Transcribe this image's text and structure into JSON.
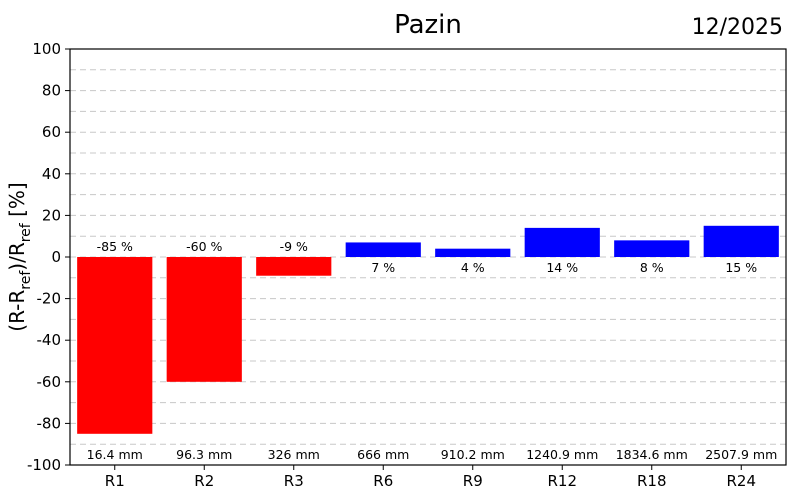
{
  "chart_data": {
    "type": "bar",
    "title": "Pazin",
    "date": "12/2025",
    "ylabel": {
      "base": "(R-R",
      "sub1": "ref",
      "mid": ")/R",
      "sub2": "ref",
      "end": " [%]"
    },
    "ylim": [
      -100,
      100
    ],
    "yticks": [
      -100,
      -80,
      -60,
      -40,
      -20,
      0,
      20,
      40,
      60,
      80,
      100
    ],
    "grid": "horizontal dashed",
    "categories": [
      "R1",
      "R2",
      "R3",
      "R6",
      "R9",
      "R12",
      "R18",
      "R24"
    ],
    "values": [
      -85,
      -60,
      -9,
      7,
      4,
      14,
      8,
      15
    ],
    "value_labels": [
      "-85 %",
      "-60 %",
      "-9 %",
      "7 %",
      "4 %",
      "14 %",
      "8 %",
      "15 %"
    ],
    "precip_labels": [
      "16.4 mm",
      "96.3 mm",
      "326 mm",
      "666 mm",
      "910.2 mm",
      "1240.9 mm",
      "1834.6 mm",
      "2507.9 mm"
    ],
    "colors": {
      "negative": "#ff0000",
      "positive": "#0000ff",
      "grid": "#c8c8c8",
      "axis": "#000000"
    }
  }
}
